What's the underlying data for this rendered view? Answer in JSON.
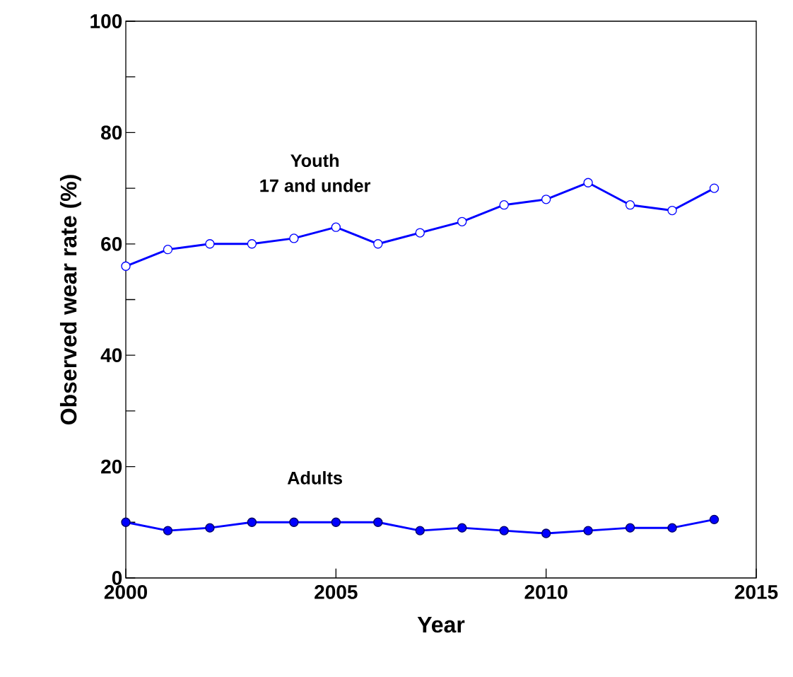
{
  "chart_data": {
    "type": "line",
    "xlabel": "Year",
    "ylabel": "Observed wear rate (%)",
    "x": [
      2000,
      2001,
      2002,
      2003,
      2004,
      2005,
      2006,
      2007,
      2008,
      2009,
      2010,
      2011,
      2012,
      2013,
      2014
    ],
    "series": [
      {
        "color": "#0000ff",
        "values": [
          56,
          59,
          60,
          60,
          61,
          63,
          60,
          62,
          64,
          67,
          68,
          71,
          67,
          66,
          70
        ]
      },
      {
        "color": "#0000ff",
        "values": [
          10,
          8.5,
          9,
          10,
          10,
          10,
          10,
          8.5,
          9,
          8.5,
          8,
          8.5,
          9,
          9,
          10.5
        ]
      }
    ],
    "xlim": [
      2000,
      2015
    ],
    "ylim": [
      0,
      100
    ],
    "xticks": [
      2000,
      2005,
      2010,
      2015
    ],
    "yticks": [
      0,
      {
        "value": 10,
        "label": null
      },
      20,
      {
        "value": 30,
        "label": null
      },
      40,
      {
        "value": 50,
        "label": null
      },
      60,
      {
        "value": 70,
        "label": null
      },
      80,
      {
        "value": 90,
        "label": null
      },
      100
    ],
    "annotations": [
      "Youth",
      "17 and under",
      "Adults"
    ],
    "marker": "circle",
    "line_style": "solid",
    "grid": false
  }
}
